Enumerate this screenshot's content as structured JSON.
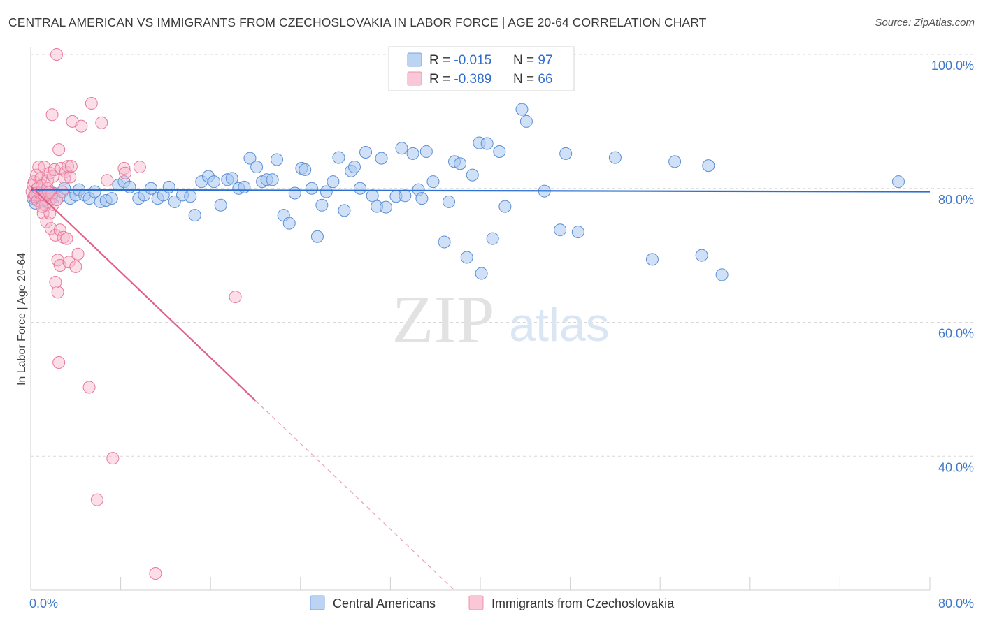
{
  "header": {
    "title": "CENTRAL AMERICAN VS IMMIGRANTS FROM CZECHOSLOVAKIA IN LABOR FORCE | AGE 20-64 CORRELATION CHART",
    "source": "Source: ZipAtlas.com"
  },
  "watermark": {
    "zip": "ZIP",
    "atlas": "atlas"
  },
  "colors": {
    "blue_fill": "#a9c8f0",
    "blue_stroke": "#5b8fd6",
    "blue_line": "#2a6fd1",
    "pink_fill": "#f6b6c9",
    "pink_stroke": "#e8799b",
    "pink_line": "#e0608a",
    "axis_text": "#3e78c9",
    "grid": "#d8d8d8"
  },
  "legend_top": {
    "rows": [
      {
        "r_label": "R = ",
        "r_value": "-0.015",
        "n_label": "N = ",
        "n_value": "97"
      },
      {
        "r_label": "R = ",
        "r_value": "-0.389",
        "n_label": "N = ",
        "n_value": "66"
      }
    ]
  },
  "legend_bottom": [
    "Central Americans",
    "Immigrants from Czechoslovakia"
  ],
  "chart_data": {
    "type": "scatter",
    "xlabel": "",
    "ylabel": "In Labor Force | Age 20-64",
    "xlim": [
      0,
      80
    ],
    "ylim": [
      20,
      100
    ],
    "x_tick_labels": [
      "0.0%",
      "80.0%"
    ],
    "y_ticks": [
      40,
      60,
      80,
      100
    ],
    "y_tick_labels": [
      "40.0%",
      "60.0%",
      "80.0%",
      "100.0%"
    ],
    "grid": true,
    "legend_position": "top-center",
    "series": [
      {
        "name": "Central Americans",
        "color": "#a9c8f0",
        "trend": {
          "x": [
            0,
            80
          ],
          "y": [
            79.8,
            79.5
          ]
        },
        "points": [
          [
            0.2,
            78.5
          ],
          [
            0.4,
            77.8
          ],
          [
            0.6,
            79.2
          ],
          [
            0.8,
            78.8
          ],
          [
            1.0,
            79.5
          ],
          [
            1.2,
            78.2
          ],
          [
            1.5,
            79.0
          ],
          [
            1.8,
            78.5
          ],
          [
            2.0,
            79.3
          ],
          [
            2.5,
            78.7
          ],
          [
            3.0,
            80.0
          ],
          [
            3.5,
            78.5
          ],
          [
            4.0,
            79.0
          ],
          [
            4.3,
            79.8
          ],
          [
            4.8,
            79.0
          ],
          [
            5.2,
            78.5
          ],
          [
            5.7,
            79.5
          ],
          [
            6.2,
            78.0
          ],
          [
            6.7,
            78.2
          ],
          [
            7.2,
            78.5
          ],
          [
            7.8,
            80.5
          ],
          [
            8.3,
            81.0
          ],
          [
            8.8,
            80.2
          ],
          [
            9.6,
            78.5
          ],
          [
            10.1,
            79.0
          ],
          [
            10.7,
            80.0
          ],
          [
            11.3,
            78.5
          ],
          [
            11.8,
            79.0
          ],
          [
            12.3,
            80.2
          ],
          [
            12.8,
            78.0
          ],
          [
            13.5,
            79.0
          ],
          [
            14.2,
            78.8
          ],
          [
            14.6,
            76.0
          ],
          [
            15.2,
            81.0
          ],
          [
            15.8,
            81.8
          ],
          [
            16.3,
            81.0
          ],
          [
            16.9,
            77.5
          ],
          [
            17.5,
            81.3
          ],
          [
            17.9,
            81.5
          ],
          [
            18.5,
            80.0
          ],
          [
            19.0,
            80.2
          ],
          [
            19.5,
            84.5
          ],
          [
            20.1,
            83.2
          ],
          [
            20.6,
            81.0
          ],
          [
            21.0,
            81.3
          ],
          [
            21.5,
            81.3
          ],
          [
            21.9,
            84.3
          ],
          [
            22.5,
            76.0
          ],
          [
            23.0,
            74.8
          ],
          [
            23.5,
            79.3
          ],
          [
            24.1,
            83.0
          ],
          [
            24.4,
            82.8
          ],
          [
            25.0,
            80.0
          ],
          [
            25.5,
            72.8
          ],
          [
            25.9,
            77.5
          ],
          [
            26.3,
            79.5
          ],
          [
            26.9,
            81.0
          ],
          [
            27.4,
            84.6
          ],
          [
            27.9,
            76.7
          ],
          [
            28.5,
            82.6
          ],
          [
            28.8,
            83.2
          ],
          [
            29.3,
            80.0
          ],
          [
            29.8,
            85.4
          ],
          [
            30.4,
            78.9
          ],
          [
            30.8,
            77.3
          ],
          [
            31.2,
            84.5
          ],
          [
            31.6,
            77.2
          ],
          [
            32.5,
            78.8
          ],
          [
            33.0,
            86.0
          ],
          [
            33.3,
            78.9
          ],
          [
            34.0,
            85.2
          ],
          [
            34.5,
            79.8
          ],
          [
            34.8,
            78.5
          ],
          [
            35.2,
            85.5
          ],
          [
            35.8,
            81.0
          ],
          [
            36.8,
            72.0
          ],
          [
            37.2,
            78.0
          ],
          [
            37.7,
            84.0
          ],
          [
            38.2,
            83.7
          ],
          [
            38.8,
            69.7
          ],
          [
            39.3,
            82.0
          ],
          [
            39.9,
            86.8
          ],
          [
            40.1,
            67.3
          ],
          [
            40.6,
            86.7
          ],
          [
            41.1,
            72.5
          ],
          [
            41.7,
            85.5
          ],
          [
            42.2,
            77.3
          ],
          [
            43.7,
            91.8
          ],
          [
            44.1,
            90.0
          ],
          [
            45.7,
            79.6
          ],
          [
            47.1,
            73.8
          ],
          [
            47.6,
            85.2
          ],
          [
            48.7,
            73.5
          ],
          [
            52.0,
            84.6
          ],
          [
            55.3,
            69.4
          ],
          [
            57.3,
            84.0
          ],
          [
            59.7,
            70.0
          ],
          [
            60.3,
            83.4
          ],
          [
            61.5,
            67.1
          ],
          [
            77.2,
            81.0
          ]
        ]
      },
      {
        "name": "Immigrants from Czechoslovakia",
        "color": "#f6b6c9",
        "trend": {
          "x": [
            0,
            20
          ],
          "y": [
            80.3,
            48.3
          ]
        },
        "points": [
          [
            0.1,
            79.5
          ],
          [
            0.2,
            80.5
          ],
          [
            0.3,
            78.8
          ],
          [
            0.3,
            81.0
          ],
          [
            0.4,
            79.0
          ],
          [
            0.5,
            82.0
          ],
          [
            0.6,
            80.0
          ],
          [
            0.6,
            78.2
          ],
          [
            0.7,
            83.2
          ],
          [
            0.8,
            79.3
          ],
          [
            0.9,
            81.5
          ],
          [
            1.0,
            80.4
          ],
          [
            1.0,
            78.3
          ],
          [
            1.1,
            76.3
          ],
          [
            1.2,
            79.0
          ],
          [
            1.2,
            83.2
          ],
          [
            1.3,
            77.5
          ],
          [
            1.4,
            75.0
          ],
          [
            1.5,
            80.0
          ],
          [
            1.5,
            81.2
          ],
          [
            1.6,
            78.0
          ],
          [
            1.7,
            82.3
          ],
          [
            1.7,
            76.3
          ],
          [
            1.8,
            74.0
          ],
          [
            1.9,
            79.2
          ],
          [
            2.0,
            81.8
          ],
          [
            2.0,
            77.6
          ],
          [
            2.1,
            82.8
          ],
          [
            2.2,
            73.0
          ],
          [
            2.3,
            78.3
          ],
          [
            2.3,
            100.0
          ],
          [
            2.4,
            69.3
          ],
          [
            2.4,
            64.5
          ],
          [
            2.2,
            66.0
          ],
          [
            2.5,
            85.8
          ],
          [
            2.6,
            73.8
          ],
          [
            2.6,
            68.5
          ],
          [
            2.5,
            54.0
          ],
          [
            2.7,
            83.0
          ],
          [
            2.8,
            79.5
          ],
          [
            2.9,
            72.7
          ],
          [
            3.0,
            81.5
          ],
          [
            3.1,
            82.5
          ],
          [
            3.2,
            72.5
          ],
          [
            3.3,
            83.3
          ],
          [
            3.4,
            69.0
          ],
          [
            3.5,
            81.7
          ],
          [
            3.6,
            83.3
          ],
          [
            3.7,
            90.0
          ],
          [
            4.0,
            68.3
          ],
          [
            4.2,
            70.2
          ],
          [
            4.5,
            89.3
          ],
          [
            1.9,
            91.0
          ],
          [
            5.4,
            92.7
          ],
          [
            6.3,
            89.8
          ],
          [
            5.2,
            50.3
          ],
          [
            6.8,
            81.2
          ],
          [
            8.3,
            83.0
          ],
          [
            8.4,
            82.3
          ],
          [
            9.7,
            83.2
          ],
          [
            7.3,
            39.7
          ],
          [
            5.9,
            33.5
          ],
          [
            11.1,
            22.5
          ],
          [
            18.2,
            63.8
          ],
          [
            1.0,
            77.3
          ],
          [
            1.6,
            79.4
          ]
        ]
      }
    ]
  }
}
